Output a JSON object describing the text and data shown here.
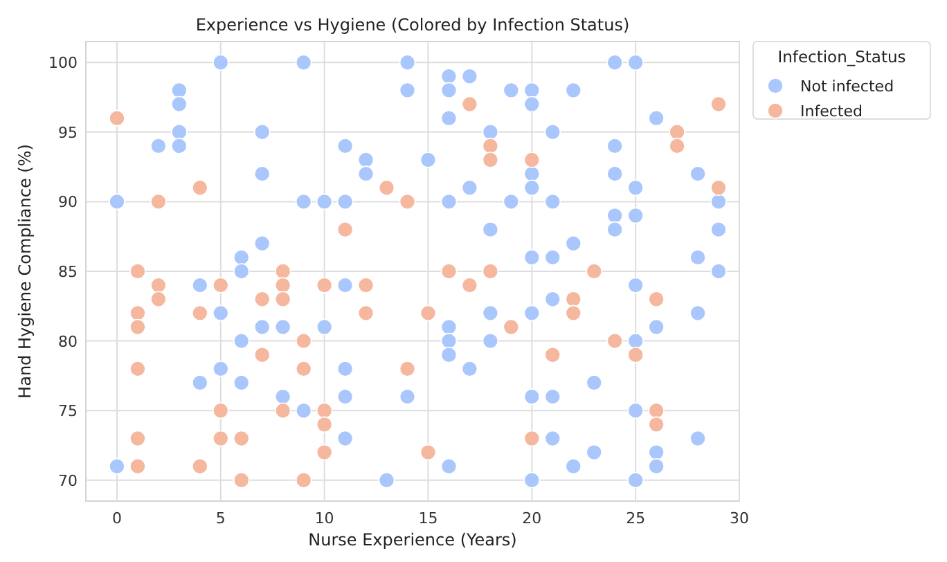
{
  "chart_data": {
    "type": "scatter",
    "title": "Experience vs Hygiene (Colored by Infection Status)",
    "xlabel": "Nurse Experience (Years)",
    "ylabel": "Hand Hygiene Compliance (%)",
    "legend_title": "Infection_Status",
    "legend": "right",
    "grid": true,
    "marker": "circle",
    "xlim": [
      -1.5,
      30
    ],
    "xticks": [
      0,
      5,
      10,
      15,
      20,
      25,
      30
    ],
    "ylim": [
      68.5,
      101.5
    ],
    "yticks": [
      70,
      75,
      80,
      85,
      90,
      95,
      100
    ],
    "series": [
      {
        "name": "Not infected",
        "color": "#aac7fd",
        "x": [
          0,
          0,
          2,
          3,
          3,
          3,
          3,
          4,
          4,
          5,
          5,
          5,
          6,
          6,
          6,
          6,
          7,
          7,
          7,
          7,
          8,
          8,
          9,
          9,
          9,
          10,
          10,
          11,
          11,
          11,
          11,
          11,
          11,
          12,
          12,
          13,
          14,
          14,
          14,
          15,
          16,
          16,
          16,
          16,
          16,
          16,
          16,
          16,
          17,
          17,
          17,
          18,
          18,
          18,
          18,
          19,
          19,
          20,
          20,
          20,
          20,
          20,
          20,
          20,
          20,
          21,
          21,
          21,
          21,
          21,
          21,
          22,
          22,
          22,
          23,
          23,
          24,
          24,
          24,
          24,
          24,
          25,
          25,
          25,
          25,
          25,
          25,
          25,
          26,
          26,
          26,
          26,
          28,
          28,
          28,
          28,
          29,
          29,
          29
        ],
        "values": [
          90,
          71,
          94,
          98,
          97,
          95,
          94,
          84,
          77,
          100,
          82,
          78,
          86,
          85,
          80,
          77,
          95,
          92,
          87,
          81,
          81,
          76,
          100,
          90,
          75,
          90,
          81,
          94,
          90,
          84,
          78,
          76,
          73,
          93,
          92,
          70,
          100,
          98,
          76,
          93,
          99,
          98,
          96,
          90,
          81,
          80,
          79,
          71,
          99,
          91,
          78,
          95,
          88,
          82,
          80,
          98,
          90,
          98,
          97,
          92,
          91,
          86,
          82,
          76,
          70,
          95,
          90,
          86,
          83,
          76,
          73,
          98,
          87,
          71,
          77,
          72,
          100,
          94,
          92,
          89,
          88,
          100,
          91,
          89,
          84,
          80,
          75,
          70,
          96,
          81,
          72,
          71,
          92,
          86,
          82,
          73,
          90,
          88,
          85
        ]
      },
      {
        "name": "Infected",
        "color": "#f5b79d",
        "x": [
          0,
          1,
          1,
          1,
          1,
          1,
          1,
          2,
          2,
          2,
          4,
          4,
          4,
          5,
          5,
          5,
          6,
          6,
          7,
          7,
          8,
          8,
          8,
          8,
          9,
          9,
          9,
          10,
          10,
          10,
          10,
          11,
          12,
          12,
          13,
          14,
          14,
          15,
          15,
          16,
          17,
          17,
          18,
          18,
          18,
          19,
          20,
          20,
          21,
          22,
          22,
          23,
          24,
          25,
          26,
          26,
          26,
          27,
          27,
          29,
          29
        ],
        "values": [
          96,
          85,
          82,
          81,
          78,
          73,
          71,
          90,
          84,
          83,
          91,
          82,
          71,
          84,
          75,
          73,
          73,
          70,
          83,
          79,
          85,
          84,
          83,
          75,
          80,
          78,
          70,
          84,
          75,
          74,
          72,
          88,
          84,
          82,
          91,
          90,
          78,
          82,
          72,
          85,
          97,
          84,
          94,
          93,
          85,
          81,
          93,
          73,
          79,
          83,
          82,
          85,
          80,
          79,
          83,
          75,
          74,
          95,
          94,
          97,
          91
        ]
      }
    ]
  }
}
